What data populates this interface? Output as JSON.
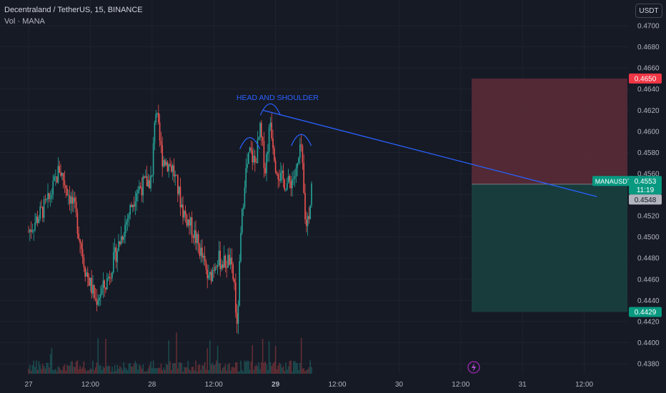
{
  "header": {
    "title": "Decentraland / TetherUS, 15, BINANCE",
    "volume_label": "Vol · MANA",
    "currency_button": "USDT"
  },
  "chart_data": {
    "type": "candlestick",
    "symbol": "MANAUSDT",
    "ylim": [
      0.437,
      0.471
    ],
    "y_ticks": [
      "0.4700",
      "0.4680",
      "0.4660",
      "0.4640",
      "0.4620",
      "0.4600",
      "0.4580",
      "0.4560",
      "0.4540",
      "0.4520",
      "0.4500",
      "0.4480",
      "0.4460",
      "0.4440",
      "0.4420",
      "0.4400",
      "0.4380"
    ],
    "x_ticks": [
      "27",
      "12:00",
      "28",
      "12:00",
      "29",
      "12:00",
      "30",
      "12:00",
      "31",
      "12:00"
    ],
    "x_ticks_bold": [
      "29"
    ],
    "price_path": [
      {
        "t": 0,
        "p": 0.4505
      },
      {
        "t": 4,
        "p": 0.4535
      },
      {
        "t": 6,
        "p": 0.4565
      },
      {
        "t": 9,
        "p": 0.4525
      },
      {
        "t": 11,
        "p": 0.447
      },
      {
        "t": 13,
        "p": 0.444
      },
      {
        "t": 15,
        "p": 0.4455
      },
      {
        "t": 18,
        "p": 0.45
      },
      {
        "t": 21,
        "p": 0.4545
      },
      {
        "t": 24,
        "p": 0.4555
      },
      {
        "t": 24.6,
        "p": 0.4625
      },
      {
        "t": 25.5,
        "p": 0.459
      },
      {
        "t": 26,
        "p": 0.4575
      },
      {
        "t": 28,
        "p": 0.4565
      },
      {
        "t": 30,
        "p": 0.4525
      },
      {
        "t": 32,
        "p": 0.4505
      },
      {
        "t": 33.5,
        "p": 0.4485
      },
      {
        "t": 35,
        "p": 0.4458
      },
      {
        "t": 36.5,
        "p": 0.448
      },
      {
        "t": 38,
        "p": 0.4475
      },
      {
        "t": 39,
        "p": 0.4478
      },
      {
        "t": 40,
        "p": 0.4455
      },
      {
        "t": 40.5,
        "p": 0.441
      },
      {
        "t": 41.3,
        "p": 0.4505
      },
      {
        "t": 42,
        "p": 0.4555
      },
      {
        "t": 43,
        "p": 0.458
      },
      {
        "t": 44,
        "p": 0.457
      },
      {
        "t": 45,
        "p": 0.46
      },
      {
        "t": 46,
        "p": 0.4565
      },
      {
        "t": 47,
        "p": 0.461
      },
      {
        "t": 48,
        "p": 0.457
      },
      {
        "t": 49,
        "p": 0.4555
      },
      {
        "t": 50.5,
        "p": 0.455
      },
      {
        "t": 52,
        "p": 0.456
      },
      {
        "t": 53,
        "p": 0.4585
      },
      {
        "t": 53.8,
        "p": 0.451
      },
      {
        "t": 54.6,
        "p": 0.4525
      },
      {
        "t": 55,
        "p": 0.4553
      }
    ],
    "current_price": "0.4553",
    "current_price_label": "MANAUSDT",
    "countdown": "11:19",
    "secondary_price": "0.4548",
    "stop_loss": "0.4650",
    "take_profit": "0.4429",
    "entry": 0.455,
    "trendline": {
      "from": {
        "t": 45.5,
        "p": 0.462
      },
      "to": {
        "t": 66,
        "p": 0.4545
      }
    },
    "annotations": [
      {
        "text": "HEAD AND SHOULDER"
      }
    ],
    "colors": {
      "background": "#161a25",
      "up": "#26a69a",
      "down": "#ef5350",
      "loss_zone": "#5d2d38",
      "profit_zone": "#18403f",
      "trendline": "#2962ff",
      "annotation": "#2962ff",
      "grid": "#1f2330"
    }
  }
}
